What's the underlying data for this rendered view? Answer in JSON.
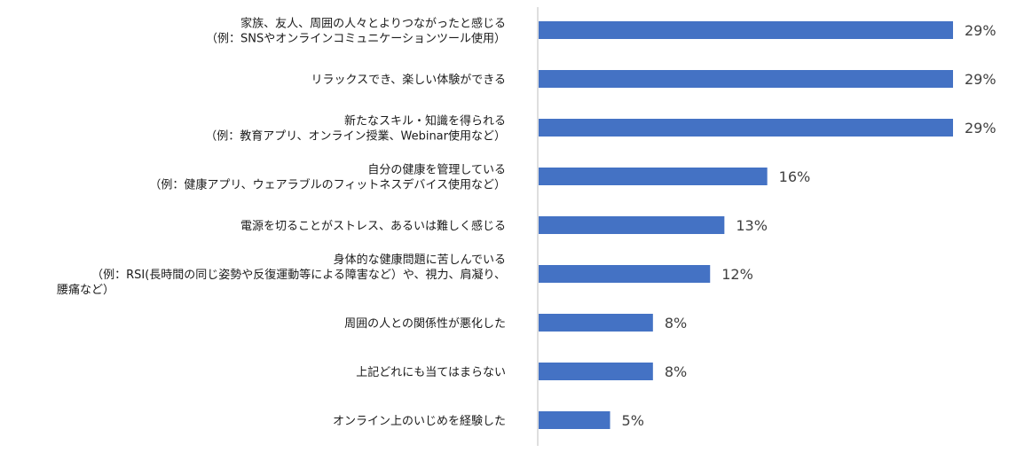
{
  "chart_data": {
    "type": "bar",
    "orientation": "horizontal",
    "categories": [
      "家族、友人、周囲の人々とよりつながったと感じる\n（例：SNSやオンラインコミュニケーションツール使用）",
      "リラックスでき、楽しい体験ができる",
      "新たなスキル・知識を得られる\n（例：教育アプリ、オンライン授業、Webinar使用など）",
      "自分の健康を管理している\n（例：健康アプリ、ウェアラブルのフィットネスデバイス使用など）",
      "電源を切ることがストレス、あるいは難しく感じる",
      "身体的な健康問題に苦しんでいる\n（例：RSI(長時間の同じ姿勢や反復運動等による障害など）や、視力、肩凝り、\n腰痛など）",
      "周囲の人との関係性が悪化した",
      "上記どれにも当てはまらない",
      "オンライン上のいじめを経験した"
    ],
    "values": [
      29,
      29,
      29,
      16,
      13,
      12,
      8,
      8,
      5
    ],
    "value_labels": [
      "29%",
      "29%",
      "29%",
      "16%",
      "13%",
      "12%",
      "8%",
      "8%",
      "5%"
    ],
    "unit": "%",
    "bar_color": "#4472C4",
    "axis_color": "#bfbfbf",
    "grid": false,
    "legend": "none"
  }
}
